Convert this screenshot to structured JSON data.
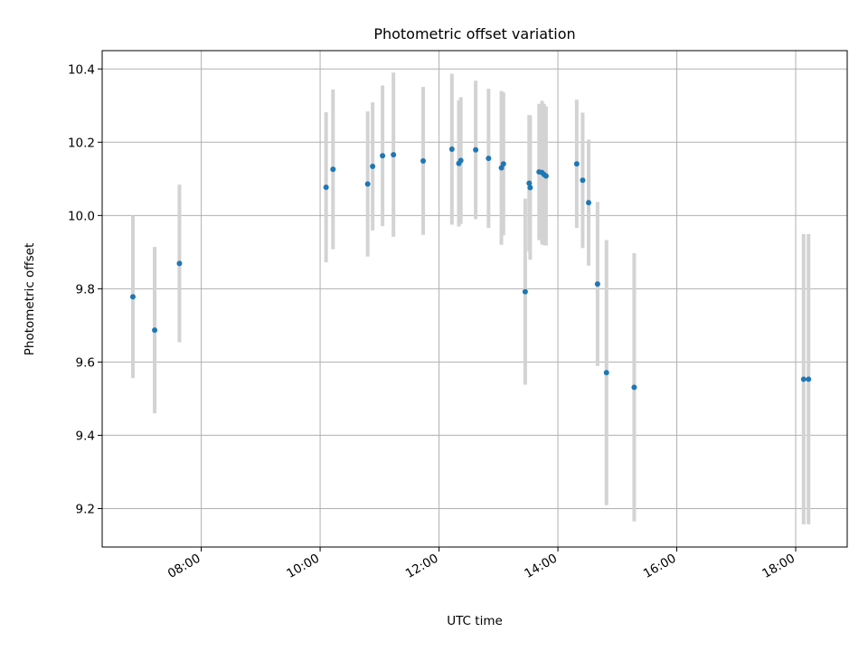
{
  "chart_data": {
    "type": "scatter",
    "title": "Photometric offset variation",
    "xlabel": "UTC time",
    "ylabel": "Photometric offset",
    "x_format": "HH:MM",
    "xlim": [
      "06:20",
      "18:52"
    ],
    "ylim": [
      9.095,
      10.45
    ],
    "x_ticks": [
      "08:00",
      "10:00",
      "12:00",
      "14:00",
      "16:00",
      "18:00"
    ],
    "y_ticks": [
      9.2,
      9.4,
      9.6,
      9.8,
      10.0,
      10.2,
      10.4
    ],
    "grid": true,
    "colors": {
      "point": "#1f77b4",
      "errorbar": "#d3d3d3",
      "grid": "#b0b0b0",
      "axes": "#000000"
    },
    "series": [
      {
        "points": [
          {
            "x": "06:51",
            "y": 9.778,
            "err": 0.222
          },
          {
            "x": "07:13",
            "y": 9.687,
            "err": 0.227
          },
          {
            "x": "07:38",
            "y": 9.869,
            "err": 0.215
          },
          {
            "x": "10:06",
            "y": 10.077,
            "err": 0.205
          },
          {
            "x": "10:13",
            "y": 10.126,
            "err": 0.218
          },
          {
            "x": "10:48",
            "y": 10.086,
            "err": 0.198
          },
          {
            "x": "10:53",
            "y": 10.134,
            "err": 0.175
          },
          {
            "x": "11:03",
            "y": 10.163,
            "err": 0.192
          },
          {
            "x": "11:14",
            "y": 10.166,
            "err": 0.224
          },
          {
            "x": "11:44",
            "y": 10.149,
            "err": 0.202
          },
          {
            "x": "12:13",
            "y": 10.181,
            "err": 0.206
          },
          {
            "x": "12:20",
            "y": 10.142,
            "err": 0.172
          },
          {
            "x": "12:22",
            "y": 10.15,
            "err": 0.173
          },
          {
            "x": "12:37",
            "y": 10.179,
            "err": 0.189
          },
          {
            "x": "12:50",
            "y": 10.156,
            "err": 0.19
          },
          {
            "x": "13:03",
            "y": 10.13,
            "err": 0.21
          },
          {
            "x": "13:05",
            "y": 10.141,
            "err": 0.195
          },
          {
            "x": "13:27",
            "y": 9.792,
            "err": 0.254
          },
          {
            "x": "13:31",
            "y": 10.088,
            "err": 0.186
          },
          {
            "x": "13:32",
            "y": 10.076,
            "err": 0.197
          },
          {
            "x": "13:41",
            "y": 10.119,
            "err": 0.186
          },
          {
            "x": "13:44",
            "y": 10.117,
            "err": 0.196
          },
          {
            "x": "13:46",
            "y": 10.112,
            "err": 0.193
          },
          {
            "x": "13:48",
            "y": 10.108,
            "err": 0.19
          },
          {
            "x": "14:19",
            "y": 10.141,
            "err": 0.175
          },
          {
            "x": "14:25",
            "y": 10.096,
            "err": 0.185
          },
          {
            "x": "14:31",
            "y": 10.035,
            "err": 0.172
          },
          {
            "x": "14:40",
            "y": 9.813,
            "err": 0.224
          },
          {
            "x": "14:49",
            "y": 9.571,
            "err": 0.362
          },
          {
            "x": "15:17",
            "y": 9.531,
            "err": 0.366
          },
          {
            "x": "18:08",
            "y": 9.553,
            "err": 0.396
          },
          {
            "x": "18:13",
            "y": 9.553,
            "err": 0.396
          }
        ]
      }
    ]
  }
}
